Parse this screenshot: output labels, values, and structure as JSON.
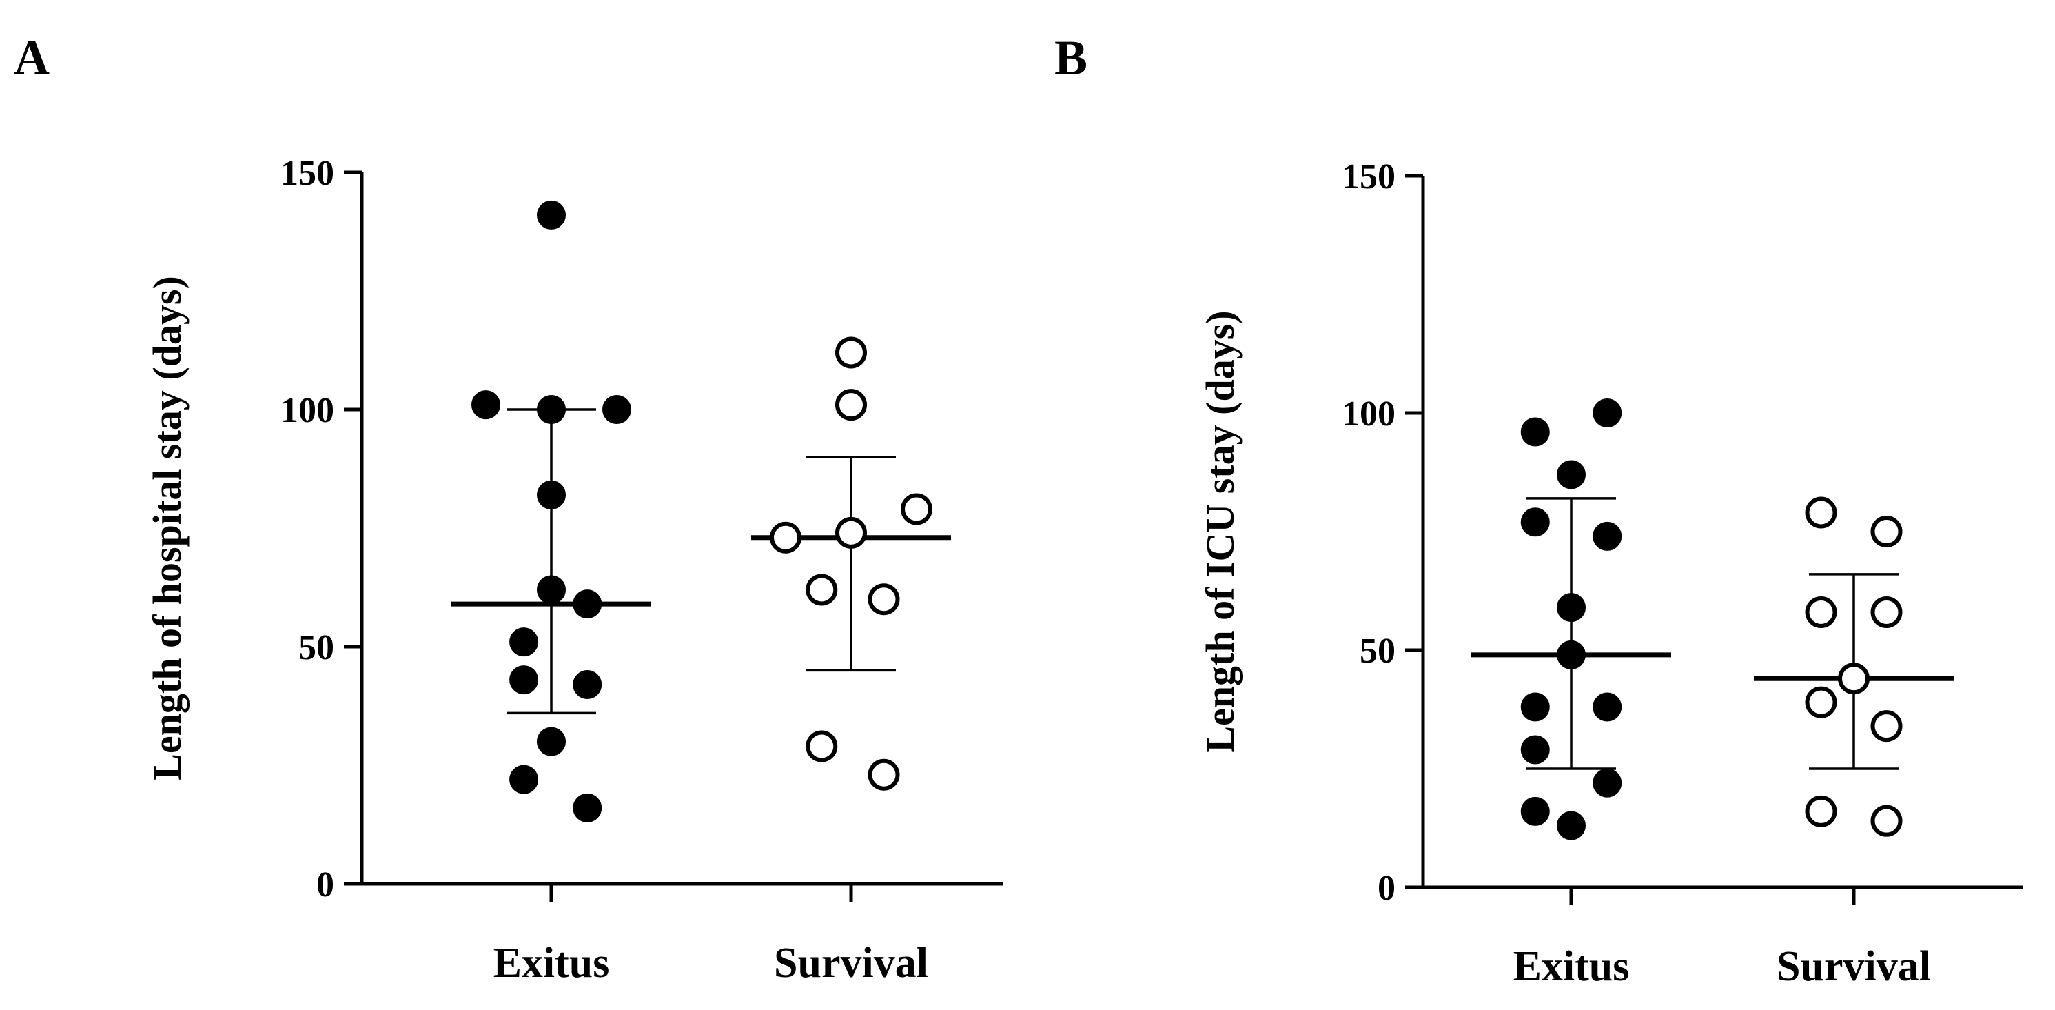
{
  "chart_data": [
    {
      "type": "scatter",
      "panel": "A",
      "ylabel": "Length of hospital stay (days)",
      "xlabel": "",
      "ylim": [
        0,
        150
      ],
      "yticks": [
        0,
        50,
        100,
        150
      ],
      "categories": [
        "Exitus",
        "Survival"
      ],
      "series": [
        {
          "name": "Exitus",
          "marker": "filled",
          "mean": 59,
          "sd_upper": 100,
          "sd_lower": 36,
          "points": [
            {
              "offset": 0,
              "y": 141
            },
            {
              "offset": -1,
              "y": 101
            },
            {
              "offset": 0,
              "y": 100
            },
            {
              "offset": 1,
              "y": 100
            },
            {
              "offset": 0,
              "y": 82
            },
            {
              "offset": 0,
              "y": 62
            },
            {
              "offset": 0.55,
              "y": 59
            },
            {
              "offset": -0.42,
              "y": 51
            },
            {
              "offset": -0.42,
              "y": 43
            },
            {
              "offset": 0.55,
              "y": 42
            },
            {
              "offset": 0,
              "y": 30
            },
            {
              "offset": -0.42,
              "y": 22
            },
            {
              "offset": 0.55,
              "y": 16
            }
          ]
        },
        {
          "name": "Survival",
          "marker": "open",
          "mean": 73,
          "sd_upper": 90,
          "sd_lower": 45,
          "points": [
            {
              "offset": 0,
              "y": 112
            },
            {
              "offset": 0,
              "y": 101
            },
            {
              "offset": 1,
              "y": 79
            },
            {
              "offset": -1,
              "y": 73
            },
            {
              "offset": 0,
              "y": 74
            },
            {
              "offset": -0.45,
              "y": 62
            },
            {
              "offset": 0.5,
              "y": 60
            },
            {
              "offset": -0.45,
              "y": 29
            },
            {
              "offset": 0.5,
              "y": 23
            }
          ]
        }
      ]
    },
    {
      "type": "scatter",
      "panel": "B",
      "ylabel": "Length of ICU stay (days)",
      "xlabel": "",
      "ylim": [
        0,
        150
      ],
      "yticks": [
        0,
        50,
        100,
        150
      ],
      "categories": [
        "Exitus",
        "Survival"
      ],
      "series": [
        {
          "name": "Exitus",
          "marker": "filled",
          "mean": 49,
          "sd_upper": 82,
          "sd_lower": 25,
          "points": [
            {
              "offset": 0.55,
              "y": 100
            },
            {
              "offset": -0.55,
              "y": 96
            },
            {
              "offset": 0,
              "y": 87
            },
            {
              "offset": -0.55,
              "y": 77
            },
            {
              "offset": 0.55,
              "y": 74
            },
            {
              "offset": 0,
              "y": 59
            },
            {
              "offset": 0,
              "y": 49
            },
            {
              "offset": -0.55,
              "y": 38
            },
            {
              "offset": 0.55,
              "y": 38
            },
            {
              "offset": -0.55,
              "y": 29
            },
            {
              "offset": 0.55,
              "y": 22
            },
            {
              "offset": -0.55,
              "y": 16
            },
            {
              "offset": 0,
              "y": 13
            }
          ]
        },
        {
          "name": "Survival",
          "marker": "open",
          "mean": 44,
          "sd_upper": 66,
          "sd_lower": 25,
          "points": [
            {
              "offset": -0.5,
              "y": 79
            },
            {
              "offset": 0.5,
              "y": 75
            },
            {
              "offset": -0.5,
              "y": 58
            },
            {
              "offset": 0.5,
              "y": 58
            },
            {
              "offset": 0,
              "y": 44
            },
            {
              "offset": -0.5,
              "y": 39
            },
            {
              "offset": 0.5,
              "y": 34
            },
            {
              "offset": -0.5,
              "y": 16
            },
            {
              "offset": 0.5,
              "y": 14
            }
          ]
        }
      ]
    }
  ]
}
